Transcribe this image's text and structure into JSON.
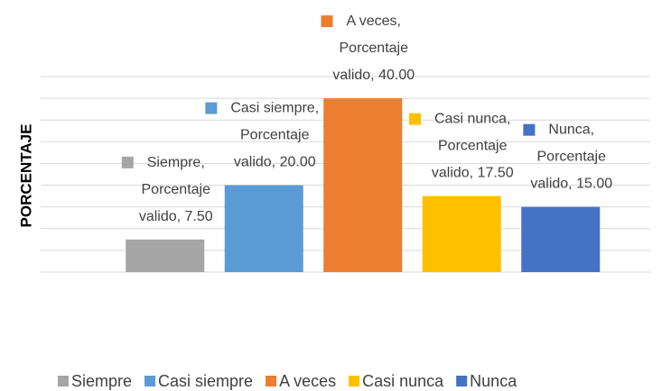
{
  "chart_data": {
    "type": "bar",
    "y_label": "PORCENTAJE",
    "categories": [
      "Siempre",
      "Casi siempre",
      "A veces",
      "Casi nunca",
      "Nunca"
    ],
    "values": [
      7.5,
      20,
      40,
      17.5,
      15
    ],
    "value_labels": [
      "Siempre, Porcentaje valido, 7.50",
      "Casi siempre, Porcentaje valido, 20.00",
      "A veces, Porcentaje valido, 40.00",
      "Casi nunca, Porcentaje valido, 17.50",
      "Nunca, Porcentaje valido, 15.00"
    ],
    "colors": [
      "#a5a5a5",
      "#5b9bd5",
      "#ed7d31",
      "#ffc000",
      "#4472c4"
    ],
    "ylim": [
      0,
      45
    ],
    "yticks": [
      0,
      5,
      10,
      15,
      20,
      25,
      30,
      35,
      40,
      45
    ],
    "grid": true,
    "legend": "bottom"
  }
}
